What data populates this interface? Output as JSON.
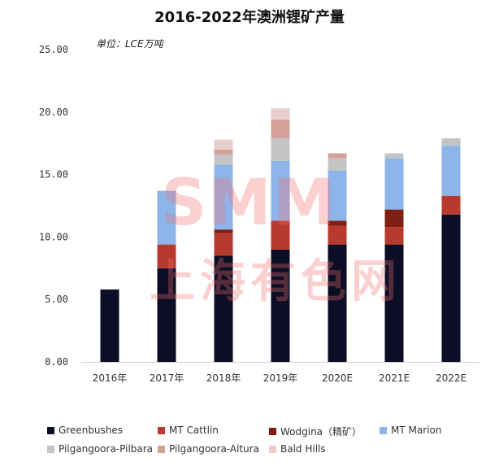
{
  "chart_data": {
    "type": "bar",
    "stacked": true,
    "title": "2016-2022年澳洲锂矿产量",
    "unit_label": "单位：LCE万吨",
    "categories": [
      "2016年",
      "2017年",
      "2018年",
      "2019年",
      "2020E",
      "2021E",
      "2022E"
    ],
    "ylim": [
      0,
      25
    ],
    "yticks": [
      "0.00",
      "5.00",
      "10.00",
      "15.00",
      "20.00",
      "25.00"
    ],
    "grid": false,
    "legend_position": "bottom",
    "series": [
      {
        "name": "Greenbushes",
        "color": "#0b0e24",
        "values": [
          5.8,
          7.5,
          8.5,
          9.0,
          9.4,
          9.4,
          11.8
        ]
      },
      {
        "name": "MT Cattlin",
        "color": "#b83a2e",
        "values": [
          0,
          1.9,
          1.8,
          2.3,
          1.5,
          1.4,
          1.5
        ]
      },
      {
        "name": "Wodgina（精矿）",
        "color": "#7e1f13",
        "values": [
          0,
          0,
          0.3,
          0,
          0.4,
          1.4,
          0
        ]
      },
      {
        "name": "MT Marion",
        "color": "#8eb5ea",
        "values": [
          0,
          4.3,
          5.2,
          4.8,
          4.0,
          4.1,
          4.0
        ]
      },
      {
        "name": "Pilgangoora-Pilbara",
        "color": "#c4c4c4",
        "values": [
          0,
          0,
          0.8,
          1.8,
          1.0,
          0.4,
          0.6
        ]
      },
      {
        "name": "Pilgangoora-Altura",
        "color": "#d4a09a",
        "values": [
          0,
          0,
          0.4,
          1.5,
          0.4,
          0,
          0
        ]
      },
      {
        "name": "Bald Hills",
        "color": "#e8cfcc",
        "values": [
          0,
          0,
          0.8,
          0.9,
          0,
          0,
          0
        ]
      }
    ]
  },
  "watermark": {
    "logo_text": "SMM",
    "cn_text": "上海有色网"
  }
}
